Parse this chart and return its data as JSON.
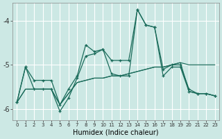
{
  "xlabel": "Humidex (Indice chaleur)",
  "bg_color": "#cce8e4",
  "grid_color": "#ffffff",
  "line_color": "#1a6b5a",
  "xlim": [
    -0.5,
    23.5
  ],
  "ylim": [
    -6.25,
    -3.6
  ],
  "yticks": [
    -6,
    -5,
    -4
  ],
  "xticks": [
    0,
    1,
    2,
    3,
    4,
    5,
    6,
    7,
    8,
    9,
    10,
    11,
    12,
    13,
    14,
    15,
    16,
    17,
    18,
    19,
    20,
    21,
    22,
    23
  ],
  "line1_x": [
    0,
    1,
    2,
    3,
    4,
    5,
    6,
    7,
    8,
    9,
    10,
    11,
    12,
    13,
    14,
    15,
    16,
    17,
    18,
    19,
    20,
    21,
    22,
    23
  ],
  "line1_y": [
    -5.85,
    -5.05,
    -5.55,
    -5.55,
    -5.55,
    -6.05,
    -5.75,
    -5.3,
    -4.8,
    -4.75,
    -4.65,
    -5.2,
    -5.25,
    -5.25,
    -3.75,
    -4.1,
    -4.15,
    -5.25,
    -5.05,
    -5.05,
    -5.6,
    -5.65,
    -5.65,
    -5.7
  ],
  "line2_x": [
    0,
    1,
    2,
    3,
    4,
    5,
    6,
    7,
    8,
    9,
    10,
    11,
    12,
    13,
    14,
    15,
    16,
    17,
    18,
    19,
    20,
    21,
    22,
    23
  ],
  "line2_y": [
    -5.85,
    -5.55,
    -5.55,
    -5.55,
    -5.55,
    -5.9,
    -5.65,
    -5.4,
    -5.35,
    -5.3,
    -5.3,
    -5.25,
    -5.25,
    -5.2,
    -5.15,
    -5.1,
    -5.05,
    -5.05,
    -5.0,
    -4.95,
    -5.0,
    -5.0,
    -5.0,
    -5.0
  ],
  "line3_x": [
    0,
    1,
    2,
    3,
    4,
    5,
    6,
    7,
    8,
    9,
    10,
    11,
    12,
    13,
    14,
    15,
    16,
    17,
    18,
    19,
    20,
    21,
    22,
    23
  ],
  "line3_y": [
    -5.85,
    -5.55,
    -5.55,
    -5.55,
    -5.55,
    -5.9,
    -5.65,
    -5.4,
    -5.35,
    -5.3,
    -5.3,
    -5.25,
    -5.25,
    -5.2,
    -5.15,
    -5.1,
    -5.05,
    -5.05,
    -5.0,
    -4.95,
    -5.6,
    -5.65,
    -5.65,
    -5.7
  ],
  "line4_x": [
    0,
    1,
    2,
    3,
    4,
    5,
    6,
    7,
    8,
    9,
    10,
    11,
    12,
    13,
    14,
    15,
    16,
    17,
    18,
    19,
    20,
    21,
    22,
    23
  ],
  "line4_y": [
    -5.85,
    -5.05,
    -5.35,
    -5.35,
    -5.35,
    -5.9,
    -5.55,
    -5.25,
    -4.55,
    -4.7,
    -4.65,
    -4.9,
    -4.9,
    -4.9,
    -3.75,
    -4.1,
    -4.15,
    -5.1,
    -5.0,
    -5.0,
    -5.55,
    -5.65,
    -5.65,
    -5.7
  ]
}
